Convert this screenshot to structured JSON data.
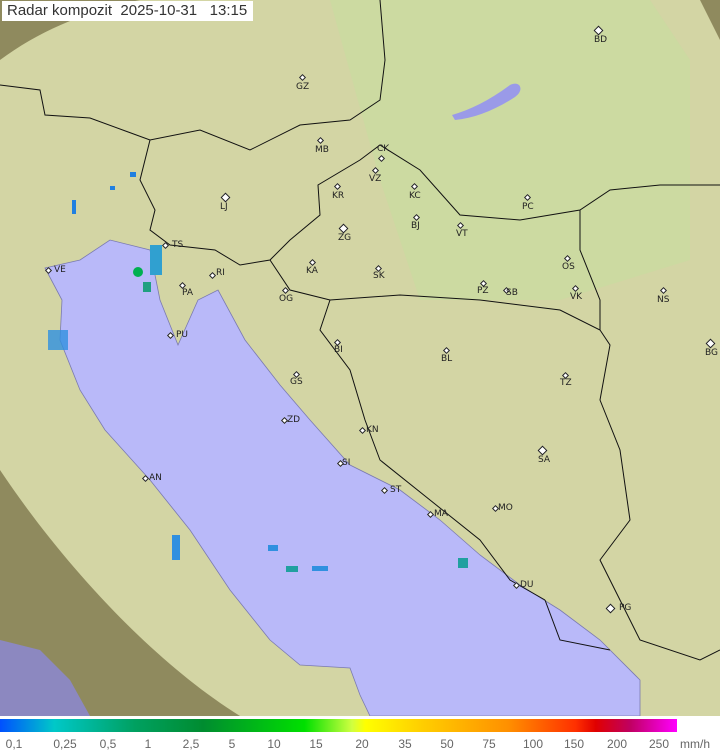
{
  "title": {
    "name": "Radar kompozit",
    "date": "2025-10-31",
    "time": "13:15"
  },
  "cities": [
    "GZ",
    "BD",
    "MB",
    "CK",
    "VZ",
    "KC",
    "KR",
    "LJ",
    "PC",
    "BJ",
    "VT",
    "ZG",
    "TS",
    "VE",
    "KA",
    "SK",
    "OS",
    "RI",
    "PA",
    "OG",
    "PZ",
    "SB",
    "VK",
    "NS",
    "PU",
    "BG",
    "BI",
    "BL",
    "GS",
    "TZ",
    "ZD",
    "KN",
    "SA",
    "SI",
    "AN",
    "ST",
    "MA",
    "MO",
    "DU",
    "PG"
  ],
  "legend": {
    "labels": [
      "0,1",
      "0,25",
      "0,5",
      "1",
      "2,5",
      "5",
      "10",
      "15",
      "20",
      "35",
      "50",
      "75",
      "100",
      "150",
      "200",
      "250"
    ],
    "unit": "mm/h"
  },
  "colors": {
    "sea": "#b8b8f8",
    "land": "#d6d8a2",
    "outside": "#9a9466",
    "echo_low": "#2080e0",
    "echo_mid": "#00b070"
  }
}
